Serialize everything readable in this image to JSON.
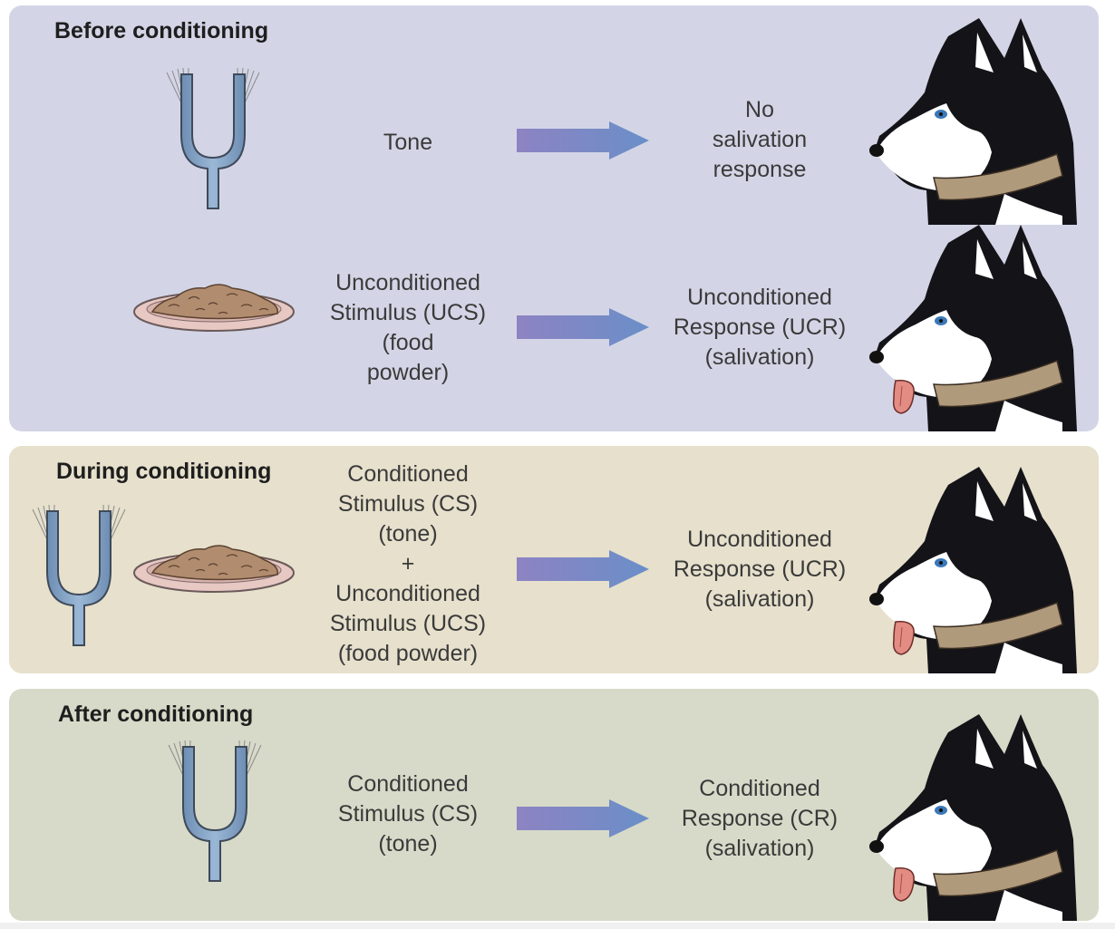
{
  "panels": [
    {
      "title": "Before conditioning",
      "color": "#d3d5e6",
      "rows": [
        {
          "stimulus": "Tone",
          "response": "No\nsalivation\nresponse",
          "stimulus_icon": "tuning-fork-icon",
          "dog_icon": "husky-dog-mouth-closed-icon"
        },
        {
          "stimulus": "Unconditioned\nStimulus (UCS)\n(food\npowder)",
          "response": "Unconditioned\nResponse (UCR)\n(salivation)",
          "stimulus_icon": "food-bowl-icon",
          "dog_icon": "husky-dog-salivating-icon"
        }
      ]
    },
    {
      "title": "During conditioning",
      "color": "#e6e0cc",
      "rows": [
        {
          "stimulus": "Conditioned\nStimulus (CS)\n(tone)\n+\nUnconditioned\nStimulus (UCS)\n(food powder)",
          "response": "Unconditioned\nResponse (UCR)\n(salivation)",
          "stimulus_icon": "tuning-fork-and-food-bowl-icon",
          "dog_icon": "husky-dog-salivating-icon"
        }
      ]
    },
    {
      "title": "After conditioning",
      "color": "#d7dac8",
      "rows": [
        {
          "stimulus": "Conditioned\nStimulus (CS)\n(tone)",
          "response": "Conditioned\nResponse (CR)\n(salivation)",
          "stimulus_icon": "tuning-fork-icon",
          "dog_icon": "husky-dog-salivating-icon"
        }
      ]
    }
  ],
  "colors": {
    "arrow_start": "#8e86c4",
    "arrow_end": "#6b8fc6",
    "fork": "#7f9ec0",
    "dog_black": "#131318",
    "collar": "#b09a7c",
    "tongue": "#e28c83"
  }
}
